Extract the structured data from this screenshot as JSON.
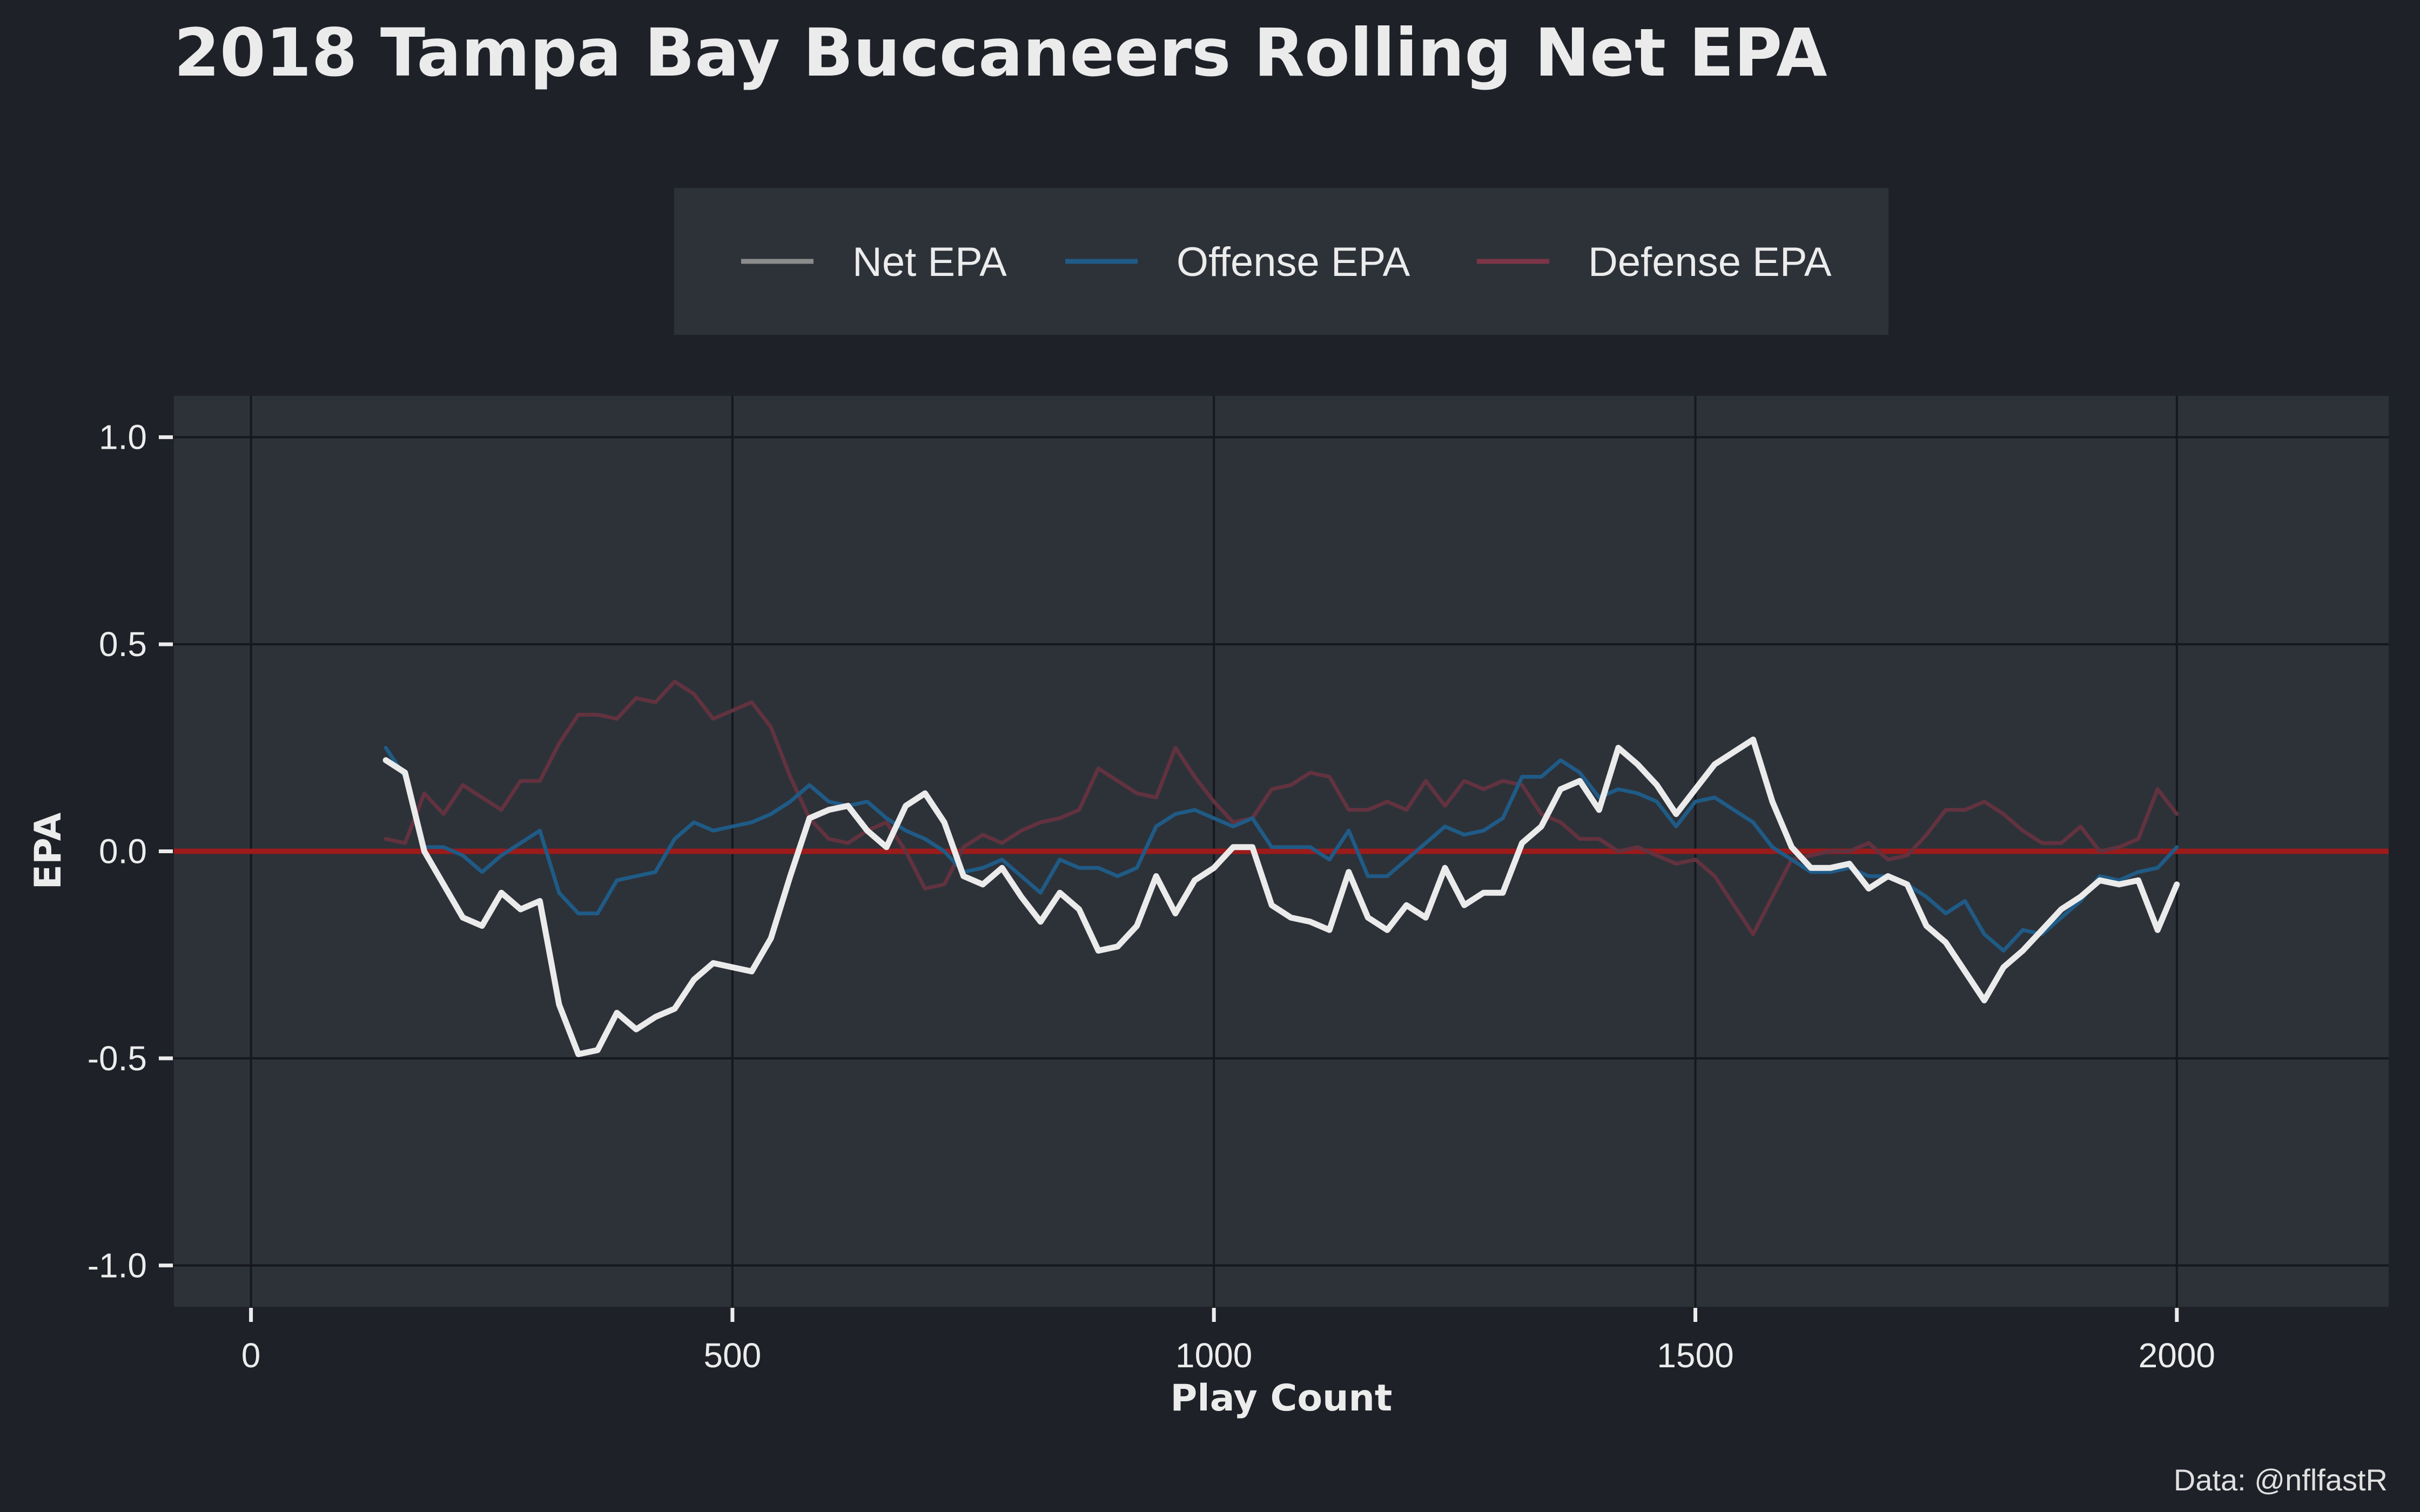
{
  "chart_data": {
    "type": "line",
    "title": "2018 Tampa Bay Buccaneers Rolling Net EPA",
    "xlabel": "Play Count",
    "ylabel": "EPA",
    "caption": "Data: @nflfastR",
    "xlim": [
      -80,
      2220
    ],
    "ylim": [
      -1.1,
      1.1
    ],
    "x_ticks": [
      0,
      500,
      1000,
      1500,
      2000
    ],
    "x_tick_labels": [
      "0",
      "500",
      "1000",
      "1500",
      "2000"
    ],
    "y_ticks": [
      1.0,
      0.5,
      0.0,
      -0.5,
      -1.0
    ],
    "y_tick_labels": [
      "1.0",
      "0.5",
      "0.0",
      "-0.5",
      "-1.0"
    ],
    "grid": true,
    "legend_position": "top",
    "reference_line": {
      "y": 0,
      "color": "#9b1b1b"
    },
    "colors": {
      "background": "#1e2128",
      "panel": "#2d3239",
      "legend_background": "#2d3239",
      "grid": "#15181d"
    },
    "series": [
      {
        "name": "Net EPA",
        "legend_color": "#8c8c8c",
        "color": "#ebebeb",
        "x": [
          140,
          160,
          180,
          200,
          220,
          240,
          260,
          280,
          300,
          320,
          340,
          360,
          380,
          400,
          420,
          440,
          460,
          480,
          500,
          520,
          540,
          560,
          580,
          600,
          620,
          640,
          660,
          680,
          700,
          720,
          740,
          760,
          780,
          800,
          820,
          840,
          860,
          880,
          900,
          920,
          940,
          960,
          980,
          1000,
          1020,
          1040,
          1060,
          1080,
          1100,
          1120,
          1140,
          1160,
          1180,
          1200,
          1220,
          1240,
          1260,
          1280,
          1300,
          1320,
          1340,
          1360,
          1380,
          1400,
          1420,
          1440,
          1460,
          1480,
          1500,
          1520,
          1540,
          1560,
          1580,
          1600,
          1620,
          1640,
          1660,
          1680,
          1700,
          1720,
          1740,
          1760,
          1780,
          1800,
          1820,
          1840,
          1860,
          1880,
          1900,
          1920,
          1940,
          1960,
          1980,
          2000
        ],
        "y": [
          0.22,
          0.19,
          0.0,
          -0.08,
          -0.16,
          -0.18,
          -0.1,
          -0.14,
          -0.12,
          -0.37,
          -0.49,
          -0.48,
          -0.39,
          -0.43,
          -0.4,
          -0.38,
          -0.31,
          -0.27,
          -0.28,
          -0.29,
          -0.21,
          -0.06,
          0.08,
          0.1,
          0.11,
          0.05,
          0.01,
          0.11,
          0.14,
          0.07,
          -0.06,
          -0.08,
          -0.04,
          -0.11,
          -0.17,
          -0.1,
          -0.14,
          -0.24,
          -0.23,
          -0.18,
          -0.06,
          -0.15,
          -0.07,
          -0.04,
          0.01,
          0.01,
          -0.13,
          -0.16,
          -0.17,
          -0.19,
          -0.05,
          -0.16,
          -0.19,
          -0.13,
          -0.16,
          -0.04,
          -0.13,
          -0.1,
          -0.1,
          0.02,
          0.06,
          0.15,
          0.17,
          0.1,
          0.25,
          0.21,
          0.16,
          0.09,
          0.15,
          0.21,
          0.24,
          0.27,
          0.12,
          0.01,
          -0.04,
          -0.04,
          -0.03,
          -0.09,
          -0.06,
          -0.08,
          -0.18,
          -0.22,
          -0.29,
          -0.36,
          -0.28,
          -0.24,
          -0.19,
          -0.14,
          -0.11,
          -0.07,
          -0.08,
          -0.07,
          -0.19,
          -0.08
        ]
      },
      {
        "name": "Offense EPA",
        "legend_color": "#1f5b86",
        "color": "#1f5b86",
        "x": [
          140,
          160,
          180,
          200,
          220,
          240,
          260,
          280,
          300,
          320,
          340,
          360,
          380,
          400,
          420,
          440,
          460,
          480,
          500,
          520,
          540,
          560,
          580,
          600,
          620,
          640,
          660,
          680,
          700,
          720,
          740,
          760,
          780,
          800,
          820,
          840,
          860,
          880,
          900,
          920,
          940,
          960,
          980,
          1000,
          1020,
          1040,
          1060,
          1080,
          1100,
          1120,
          1140,
          1160,
          1180,
          1200,
          1220,
          1240,
          1260,
          1280,
          1300,
          1320,
          1340,
          1360,
          1380,
          1400,
          1420,
          1440,
          1460,
          1480,
          1500,
          1520,
          1540,
          1560,
          1580,
          1600,
          1620,
          1640,
          1660,
          1680,
          1700,
          1720,
          1740,
          1760,
          1780,
          1800,
          1820,
          1840,
          1860,
          1880,
          1900,
          1920,
          1940,
          1960,
          1980,
          2000
        ],
        "y": [
          0.25,
          0.18,
          0.01,
          0.01,
          -0.01,
          -0.05,
          -0.01,
          0.02,
          0.05,
          -0.1,
          -0.15,
          -0.15,
          -0.07,
          -0.06,
          -0.05,
          0.03,
          0.07,
          0.05,
          0.06,
          0.07,
          0.09,
          0.12,
          0.16,
          0.12,
          0.11,
          0.12,
          0.08,
          0.05,
          0.03,
          0.0,
          -0.05,
          -0.04,
          -0.02,
          -0.06,
          -0.1,
          -0.02,
          -0.04,
          -0.04,
          -0.06,
          -0.04,
          0.06,
          0.09,
          0.1,
          0.08,
          0.06,
          0.08,
          0.01,
          0.01,
          0.01,
          -0.02,
          0.05,
          -0.06,
          -0.06,
          -0.02,
          0.02,
          0.06,
          0.04,
          0.05,
          0.08,
          0.18,
          0.18,
          0.22,
          0.19,
          0.13,
          0.15,
          0.14,
          0.12,
          0.06,
          0.12,
          0.13,
          0.1,
          0.07,
          0.01,
          -0.02,
          -0.05,
          -0.05,
          -0.04,
          -0.06,
          -0.06,
          -0.08,
          -0.11,
          -0.15,
          -0.12,
          -0.2,
          -0.24,
          -0.19,
          -0.2,
          -0.16,
          -0.12,
          -0.06,
          -0.07,
          -0.05,
          -0.04,
          0.01
        ]
      },
      {
        "name": "Defense EPA",
        "legend_color": "#7b3547",
        "color": "#63323f",
        "x": [
          140,
          160,
          180,
          200,
          220,
          240,
          260,
          280,
          300,
          320,
          340,
          360,
          380,
          400,
          420,
          440,
          460,
          480,
          500,
          520,
          540,
          560,
          580,
          600,
          620,
          640,
          660,
          680,
          700,
          720,
          740,
          760,
          780,
          800,
          820,
          840,
          860,
          880,
          900,
          920,
          940,
          960,
          980,
          1000,
          1020,
          1040,
          1060,
          1080,
          1100,
          1120,
          1140,
          1160,
          1180,
          1200,
          1220,
          1240,
          1260,
          1280,
          1300,
          1320,
          1340,
          1360,
          1380,
          1400,
          1420,
          1440,
          1460,
          1480,
          1500,
          1520,
          1540,
          1560,
          1580,
          1600,
          1620,
          1640,
          1660,
          1680,
          1700,
          1720,
          1740,
          1760,
          1780,
          1800,
          1820,
          1840,
          1860,
          1880,
          1900,
          1920,
          1940,
          1960,
          1980,
          2000
        ],
        "y": [
          0.03,
          0.02,
          0.14,
          0.09,
          0.16,
          0.13,
          0.1,
          0.17,
          0.17,
          0.26,
          0.33,
          0.33,
          0.32,
          0.37,
          0.36,
          0.41,
          0.38,
          0.32,
          0.34,
          0.36,
          0.3,
          0.18,
          0.08,
          0.03,
          0.02,
          0.05,
          0.07,
          0.0,
          -0.09,
          -0.08,
          0.01,
          0.04,
          0.02,
          0.05,
          0.07,
          0.08,
          0.1,
          0.2,
          0.17,
          0.14,
          0.13,
          0.25,
          0.18,
          0.12,
          0.07,
          0.08,
          0.15,
          0.16,
          0.19,
          0.18,
          0.1,
          0.1,
          0.12,
          0.1,
          0.17,
          0.11,
          0.17,
          0.15,
          0.17,
          0.16,
          0.09,
          0.07,
          0.03,
          0.03,
          0.0,
          0.01,
          -0.01,
          -0.03,
          -0.02,
          -0.06,
          -0.13,
          -0.2,
          -0.11,
          -0.02,
          -0.01,
          0.0,
          0.0,
          0.02,
          -0.02,
          -0.01,
          0.04,
          0.1,
          0.1,
          0.12,
          0.09,
          0.05,
          0.02,
          0.02,
          0.06,
          0.0,
          0.01,
          0.03,
          0.15,
          0.09
        ]
      }
    ]
  }
}
